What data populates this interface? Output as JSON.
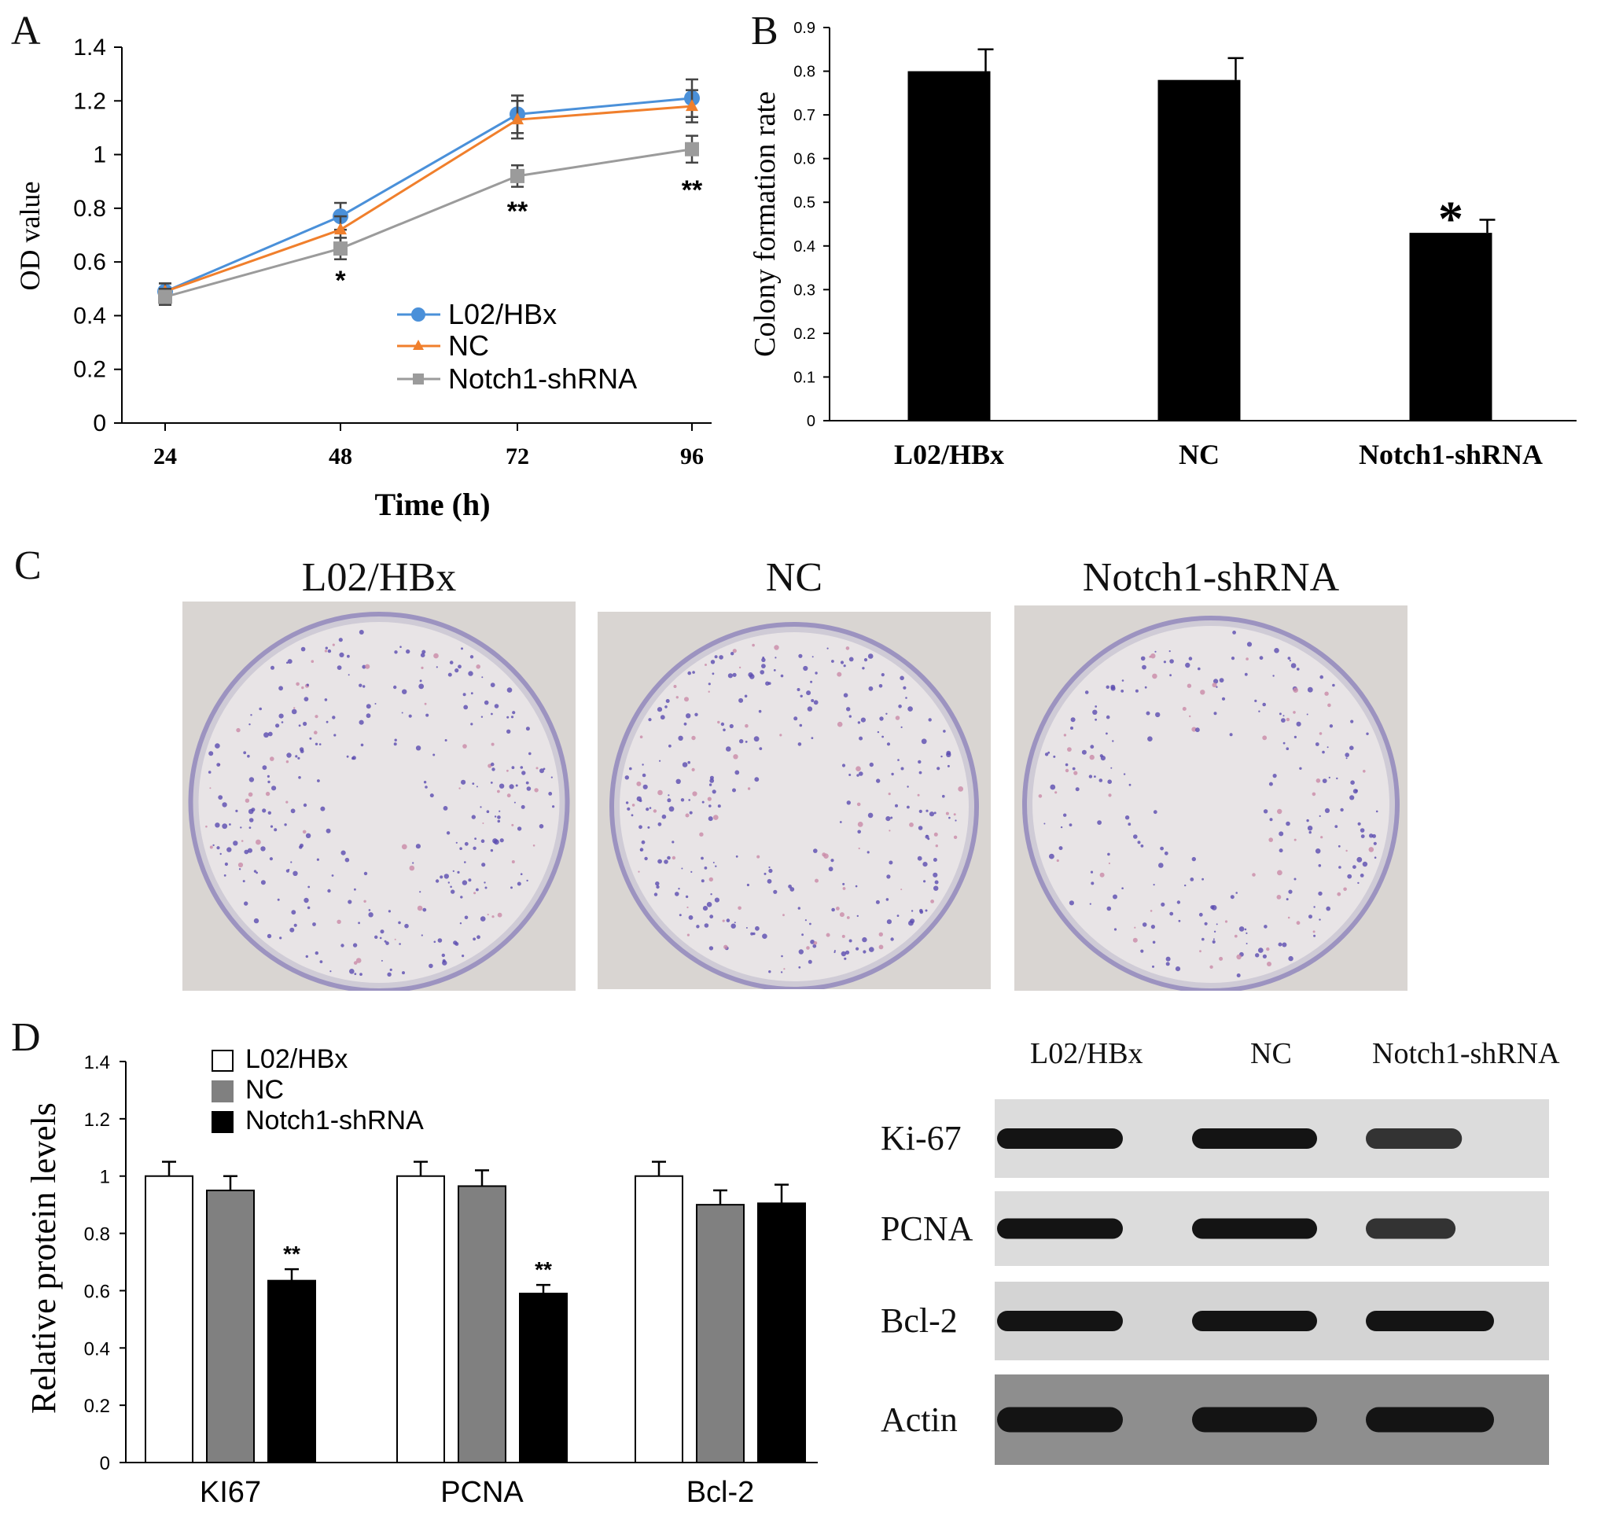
{
  "panels": {
    "A": "A",
    "B": "B",
    "C": "C",
    "D": "D"
  },
  "chart_data": [
    {
      "id": "A",
      "type": "line",
      "xlabel": "Time (h)",
      "ylabel": "OD value",
      "categories": [
        "24",
        "48",
        "72",
        "96"
      ],
      "ylim": [
        0,
        1.4
      ],
      "yticks": [
        "0",
        "0.2",
        "0.4",
        "0.6",
        "0.8",
        "1",
        "1.2",
        "1.4"
      ],
      "series": [
        {
          "name": "L02/HBx",
          "color": "#4a90d9",
          "marker": "circle",
          "values": [
            0.49,
            0.77,
            1.15,
            1.21
          ],
          "errors": [
            0.03,
            0.05,
            0.07,
            0.07
          ]
        },
        {
          "name": "NC",
          "color": "#f07f2c",
          "marker": "triangle",
          "values": [
            0.49,
            0.72,
            1.13,
            1.18
          ],
          "errors": [
            0.03,
            0.05,
            0.07,
            0.06
          ]
        },
        {
          "name": "Notch1-shRNA",
          "color": "#9b9b9b",
          "marker": "square",
          "values": [
            0.47,
            0.65,
            0.92,
            1.02
          ],
          "errors": [
            0.03,
            0.04,
            0.04,
            0.05
          ]
        }
      ],
      "annotations": [
        "",
        "*",
        "**",
        "**"
      ]
    },
    {
      "id": "B",
      "type": "bar",
      "ylabel": "Colony formation rate",
      "categories": [
        "L02/HBx",
        "NC",
        "Notch1-shRNA"
      ],
      "values": [
        0.8,
        0.78,
        0.43
      ],
      "errors": [
        0.05,
        0.05,
        0.03
      ],
      "annotations": [
        "",
        "",
        "*"
      ],
      "ylim": [
        0,
        0.9
      ],
      "yticks": [
        "0",
        "0.1",
        "0.2",
        "0.3",
        "0.4",
        "0.5",
        "0.6",
        "0.7",
        "0.8",
        "0.9"
      ],
      "color": "#000000"
    },
    {
      "id": "D",
      "type": "bar",
      "ylabel": "Relative protein levels",
      "categories": [
        "KI67",
        "PCNA",
        "Bcl-2"
      ],
      "ylim": [
        0,
        1.4
      ],
      "yticks": [
        "0",
        "0.2",
        "0.4",
        "0.6",
        "0.8",
        "1",
        "1.2",
        "1.4"
      ],
      "series": [
        {
          "name": "L02/HBx",
          "color": "#ffffff",
          "values": [
            1.0,
            1.0,
            1.0
          ],
          "errors": [
            0.05,
            0.05,
            0.05
          ]
        },
        {
          "name": "NC",
          "color": "#808080",
          "values": [
            0.95,
            0.965,
            0.9
          ],
          "errors": [
            0.05,
            0.055,
            0.05
          ]
        },
        {
          "name": "Notch1-shRNA",
          "color": "#000000",
          "values": [
            0.635,
            0.59,
            0.905
          ],
          "errors": [
            0.04,
            0.03,
            0.065
          ]
        }
      ],
      "annotations": [
        "**",
        "**",
        ""
      ]
    }
  ],
  "dishes": {
    "labels": [
      "L02/HBx",
      "NC",
      "Notch1-shRNA"
    ]
  },
  "blot": {
    "columns": [
      "L02/HBx",
      "NC",
      "Notch1-shRNA"
    ],
    "rows": [
      "Ki-67",
      "PCNA",
      "Bcl-2",
      "Actin"
    ]
  }
}
